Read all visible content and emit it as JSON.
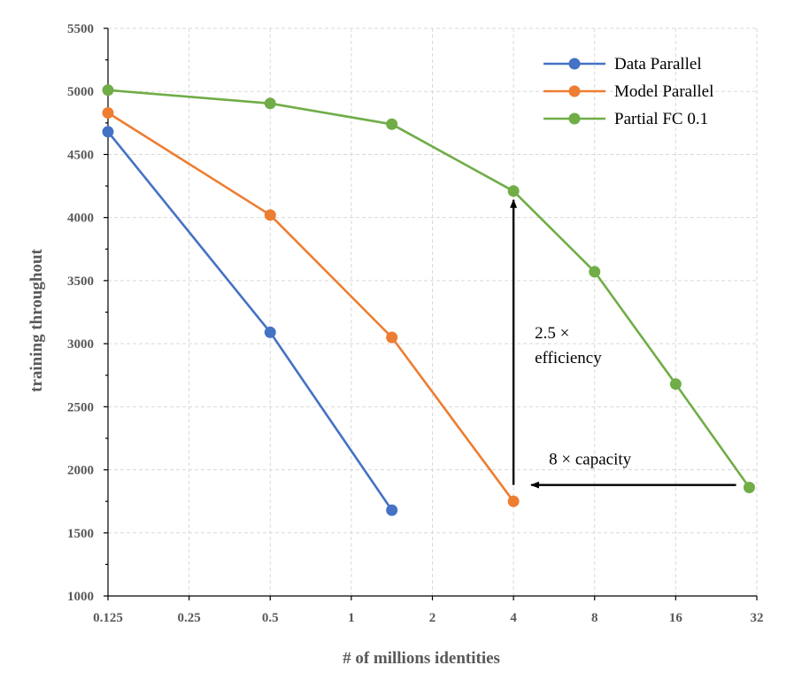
{
  "chart_data": {
    "type": "line",
    "x_scale": "log2",
    "x_ticks": [
      "0.125",
      "0.25",
      "0.5",
      "1",
      "2",
      "4",
      "8",
      "16",
      "32"
    ],
    "y_ticks": [
      1000,
      1500,
      2000,
      2500,
      3000,
      3500,
      4000,
      4500,
      5000,
      5500
    ],
    "xlim": [
      0.125,
      32
    ],
    "ylim": [
      1000,
      5500
    ],
    "xlabel": "# of millions identities",
    "ylabel": "training throughout",
    "grid": true,
    "legend_position": "top-right",
    "series": [
      {
        "name": "Data Parallel",
        "color": "#4472C4",
        "x": [
          0.125,
          0.5,
          1.414
        ],
        "y": [
          4680,
          3090,
          1680
        ]
      },
      {
        "name": "Model Parallel",
        "color": "#ED7D31",
        "x": [
          0.125,
          0.5,
          1.414,
          4
        ],
        "y": [
          4830,
          4020,
          3050,
          1750
        ]
      },
      {
        "name": "Partial FC 0.1",
        "color": "#70AD47",
        "x": [
          0.125,
          0.5,
          1.414,
          4,
          8,
          16,
          30
        ],
        "y": [
          5010,
          4905,
          4740,
          4210,
          3570,
          2680,
          1860
        ]
      }
    ],
    "annotations": [
      {
        "text_lines": [
          "2.5 ×",
          "efficiency"
        ],
        "arrow": "vertical",
        "x": 4,
        "y_from": 1880,
        "y_to": 4210
      },
      {
        "text_lines": [
          "8 × capacity"
        ],
        "arrow": "horizontal",
        "y": 1880,
        "x_from": 26,
        "x_to": 4
      }
    ]
  }
}
